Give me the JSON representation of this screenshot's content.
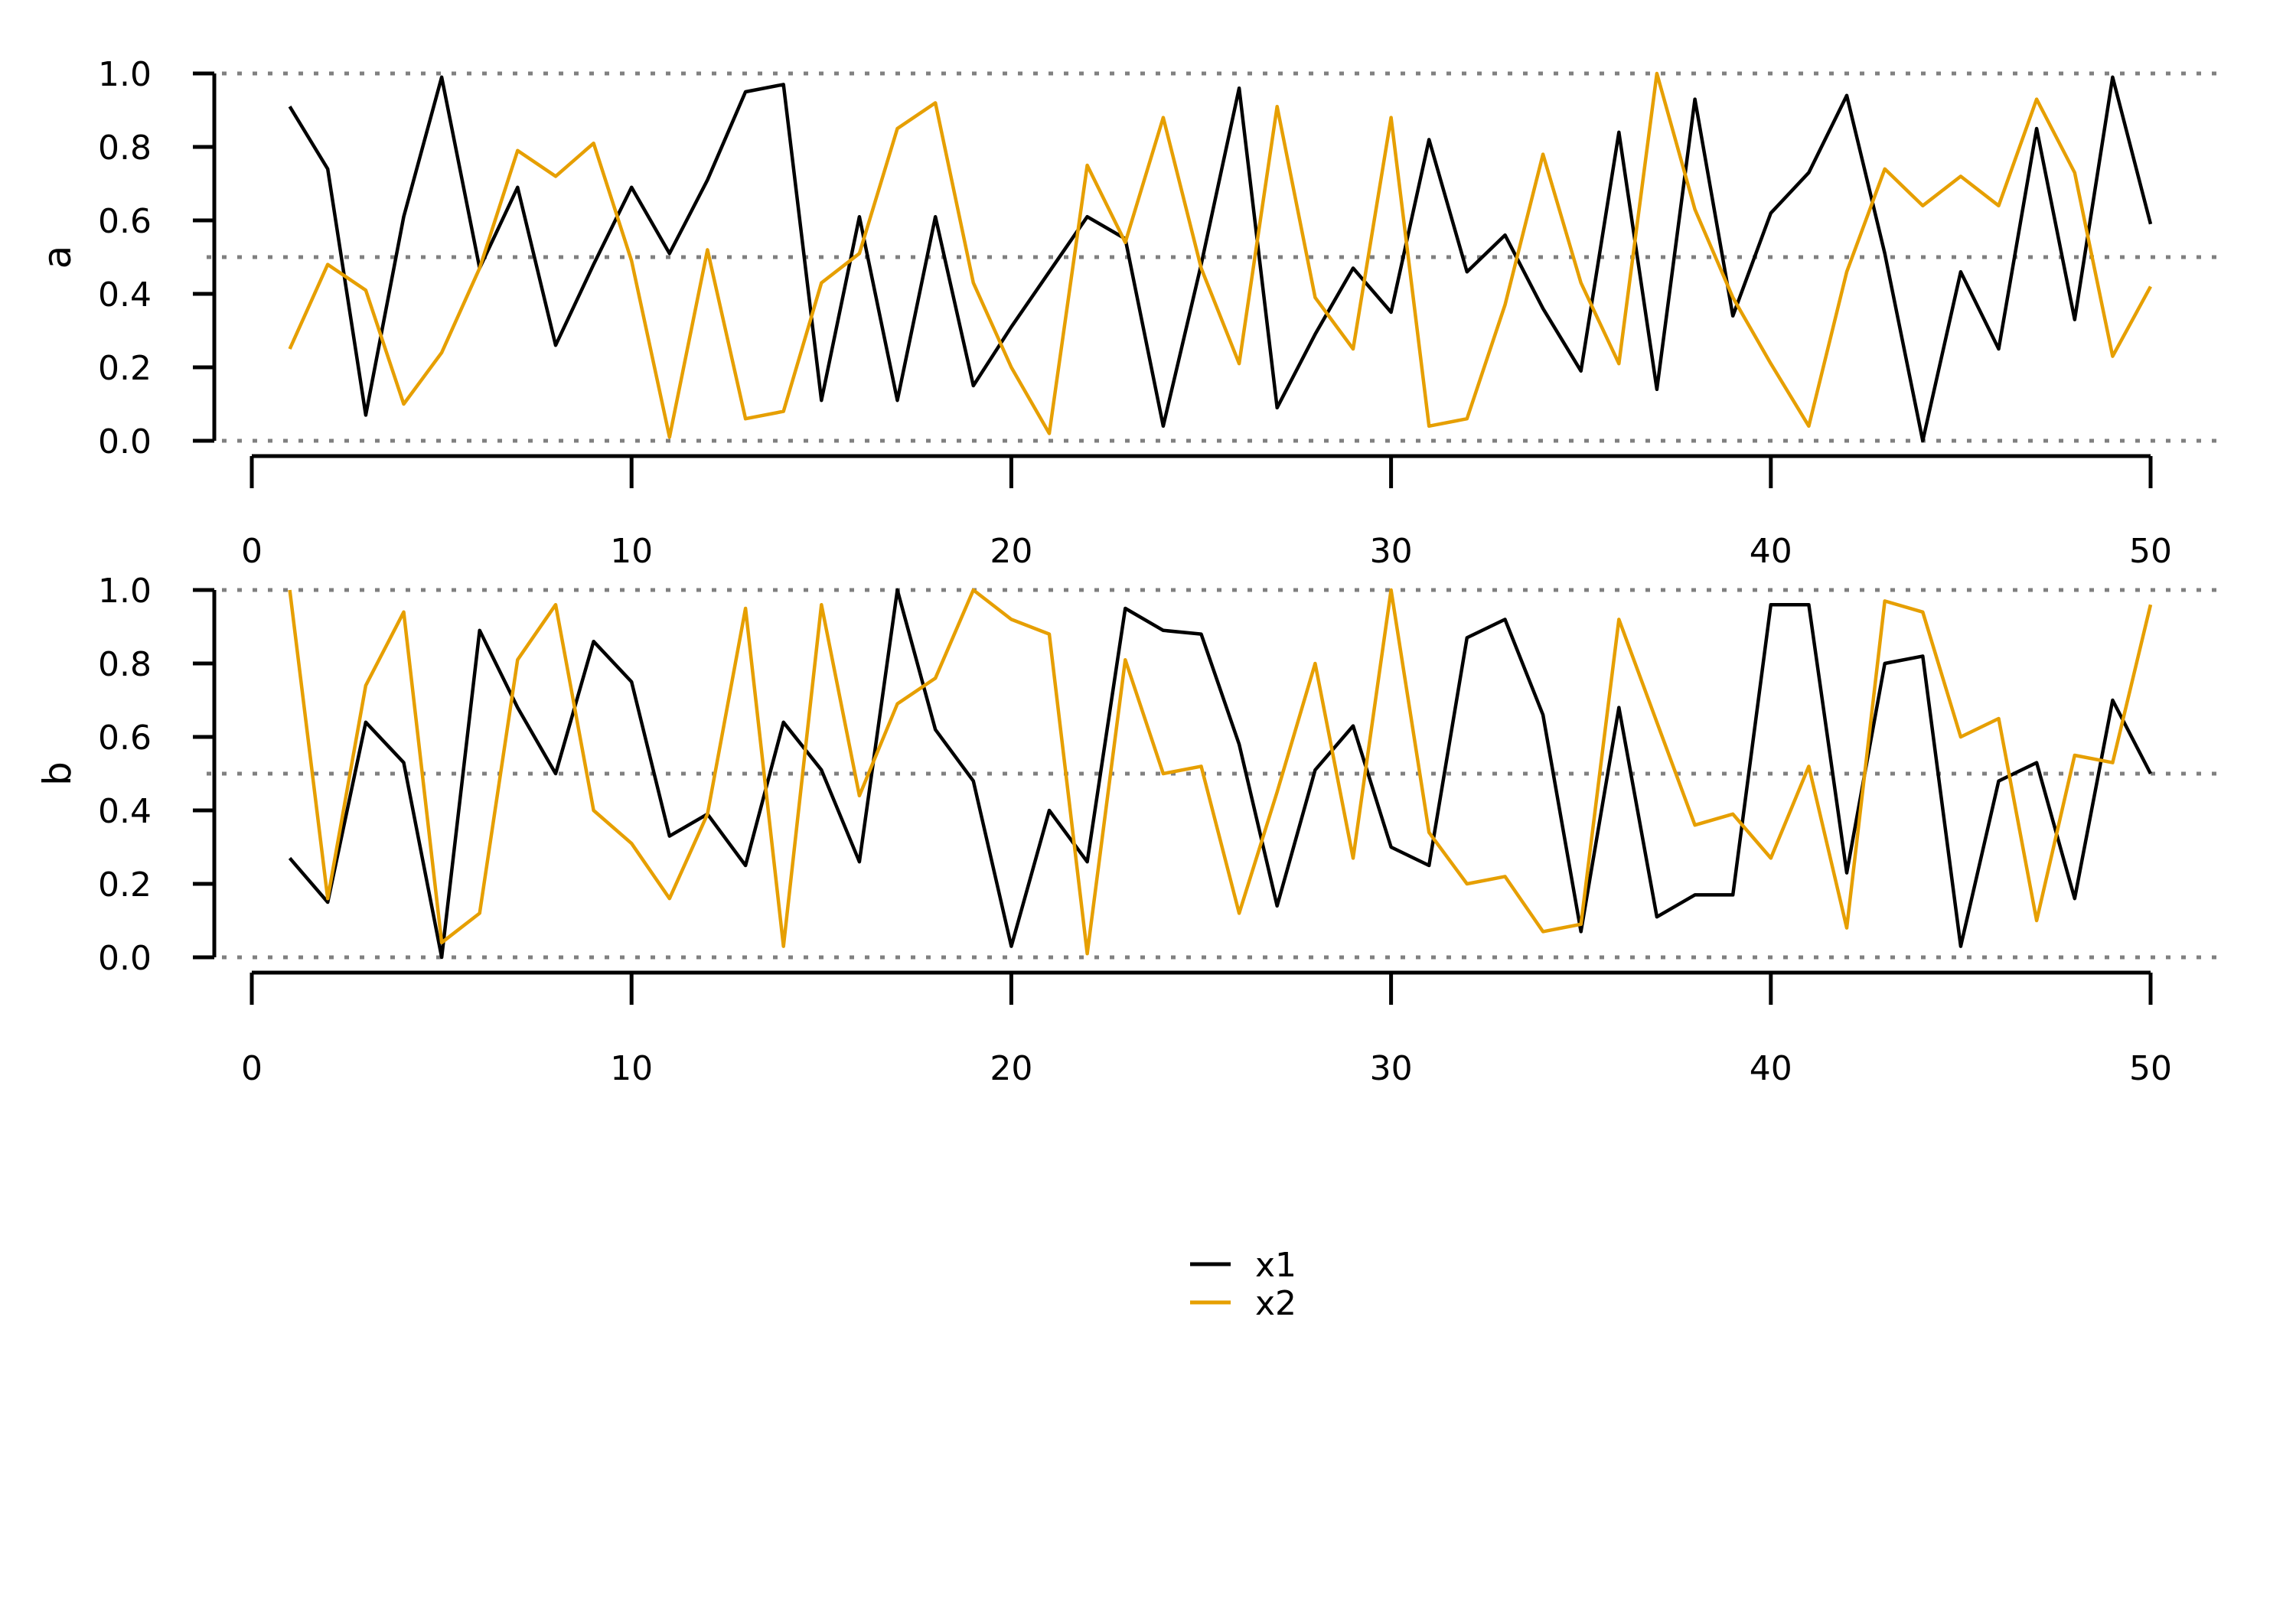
{
  "colors": {
    "x1": "#000000",
    "x2": "#E69F00",
    "reference": "#808080"
  },
  "chart_data": [
    {
      "type": "line",
      "ylabel": "a",
      "xlabel": "",
      "xlim": [
        0,
        50
      ],
      "ylim": [
        0,
        1
      ],
      "xticks": [
        0,
        10,
        20,
        30,
        40,
        50
      ],
      "yticks": [
        "0.0",
        "0.2",
        "0.4",
        "0.6",
        "0.8",
        "1.0"
      ],
      "reference_lines": [
        0,
        0.5,
        1
      ],
      "x": [
        1,
        2,
        3,
        4,
        5,
        6,
        7,
        8,
        9,
        10,
        11,
        12,
        13,
        14,
        15,
        16,
        17,
        18,
        19,
        20,
        21,
        22,
        23,
        24,
        25,
        26,
        27,
        28,
        29,
        30,
        31,
        32,
        33,
        34,
        35,
        36,
        37,
        38,
        39,
        40,
        41,
        42,
        43,
        44,
        45,
        46,
        47,
        48,
        49,
        50
      ],
      "series": [
        {
          "name": "x1",
          "values": [
            0.91,
            0.74,
            0.07,
            0.61,
            0.99,
            0.47,
            0.69,
            0.26,
            0.48,
            0.69,
            0.51,
            0.71,
            0.95,
            0.97,
            0.11,
            0.61,
            0.11,
            0.61,
            0.15,
            0.31,
            0.46,
            0.61,
            0.55,
            0.04,
            0.48,
            0.96,
            0.09,
            0.29,
            0.47,
            0.35,
            0.82,
            0.46,
            0.56,
            0.36,
            0.19,
            0.84,
            0.14,
            0.93,
            0.34,
            0.62,
            0.73,
            0.94,
            0.51,
            0.0,
            0.46,
            0.25,
            0.85,
            0.33,
            0.99,
            0.59
          ]
        },
        {
          "name": "x2",
          "values": [
            0.25,
            0.48,
            0.41,
            0.1,
            0.24,
            0.47,
            0.79,
            0.72,
            0.81,
            0.49,
            0.01,
            0.52,
            0.06,
            0.08,
            0.43,
            0.51,
            0.85,
            0.92,
            0.43,
            0.2,
            0.02,
            0.75,
            0.54,
            0.88,
            0.47,
            0.21,
            0.91,
            0.39,
            0.25,
            0.88,
            0.04,
            0.06,
            0.37,
            0.78,
            0.43,
            0.21,
            1.0,
            0.63,
            0.39,
            0.21,
            0.04,
            0.46,
            0.74,
            0.64,
            0.72,
            0.64,
            0.93,
            0.73,
            0.23,
            0.42
          ]
        }
      ]
    },
    {
      "type": "line",
      "ylabel": "b",
      "xlabel": "",
      "xlim": [
        0,
        50
      ],
      "ylim": [
        0,
        1
      ],
      "xticks": [
        0,
        10,
        20,
        30,
        40,
        50
      ],
      "yticks": [
        "0.0",
        "0.2",
        "0.4",
        "0.6",
        "0.8",
        "1.0"
      ],
      "reference_lines": [
        0,
        0.5,
        1
      ],
      "x": [
        1,
        2,
        3,
        4,
        5,
        6,
        7,
        8,
        9,
        10,
        11,
        12,
        13,
        14,
        15,
        16,
        17,
        18,
        19,
        20,
        21,
        22,
        23,
        24,
        25,
        26,
        27,
        28,
        29,
        30,
        31,
        32,
        33,
        34,
        35,
        36,
        37,
        38,
        39,
        40,
        41,
        42,
        43,
        44,
        45,
        46,
        47,
        48,
        49,
        50
      ],
      "series": [
        {
          "name": "x1",
          "values": [
            0.27,
            0.15,
            0.64,
            0.53,
            0.0,
            0.89,
            0.68,
            0.5,
            0.86,
            0.75,
            0.33,
            0.39,
            0.25,
            0.64,
            0.51,
            0.26,
            1.0,
            0.62,
            0.48,
            0.03,
            0.4,
            0.26,
            0.95,
            0.89,
            0.88,
            0.58,
            0.14,
            0.51,
            0.63,
            0.3,
            0.25,
            0.87,
            0.92,
            0.66,
            0.07,
            0.68,
            0.11,
            0.17,
            0.17,
            0.96,
            0.96,
            0.23,
            0.8,
            0.82,
            0.03,
            0.48,
            0.53,
            0.16,
            0.7,
            0.5
          ]
        },
        {
          "name": "x2",
          "values": [
            1.0,
            0.16,
            0.74,
            0.94,
            0.04,
            0.12,
            0.81,
            0.96,
            0.4,
            0.31,
            0.16,
            0.39,
            0.95,
            0.03,
            0.96,
            0.44,
            0.69,
            0.76,
            1.0,
            0.92,
            0.88,
            0.01,
            0.81,
            0.5,
            0.52,
            0.12,
            0.45,
            0.8,
            0.27,
            1.0,
            0.34,
            0.2,
            0.22,
            0.07,
            0.09,
            0.92,
            0.64,
            0.36,
            0.39,
            0.27,
            0.52,
            0.08,
            0.97,
            0.94,
            0.6,
            0.65,
            0.1,
            0.55,
            0.53,
            0.96
          ]
        }
      ]
    }
  ],
  "legend": {
    "placement": "bottom-center",
    "entries": [
      {
        "label": "x1",
        "color": "#000000"
      },
      {
        "label": "x2",
        "color": "#E69F00"
      }
    ]
  }
}
